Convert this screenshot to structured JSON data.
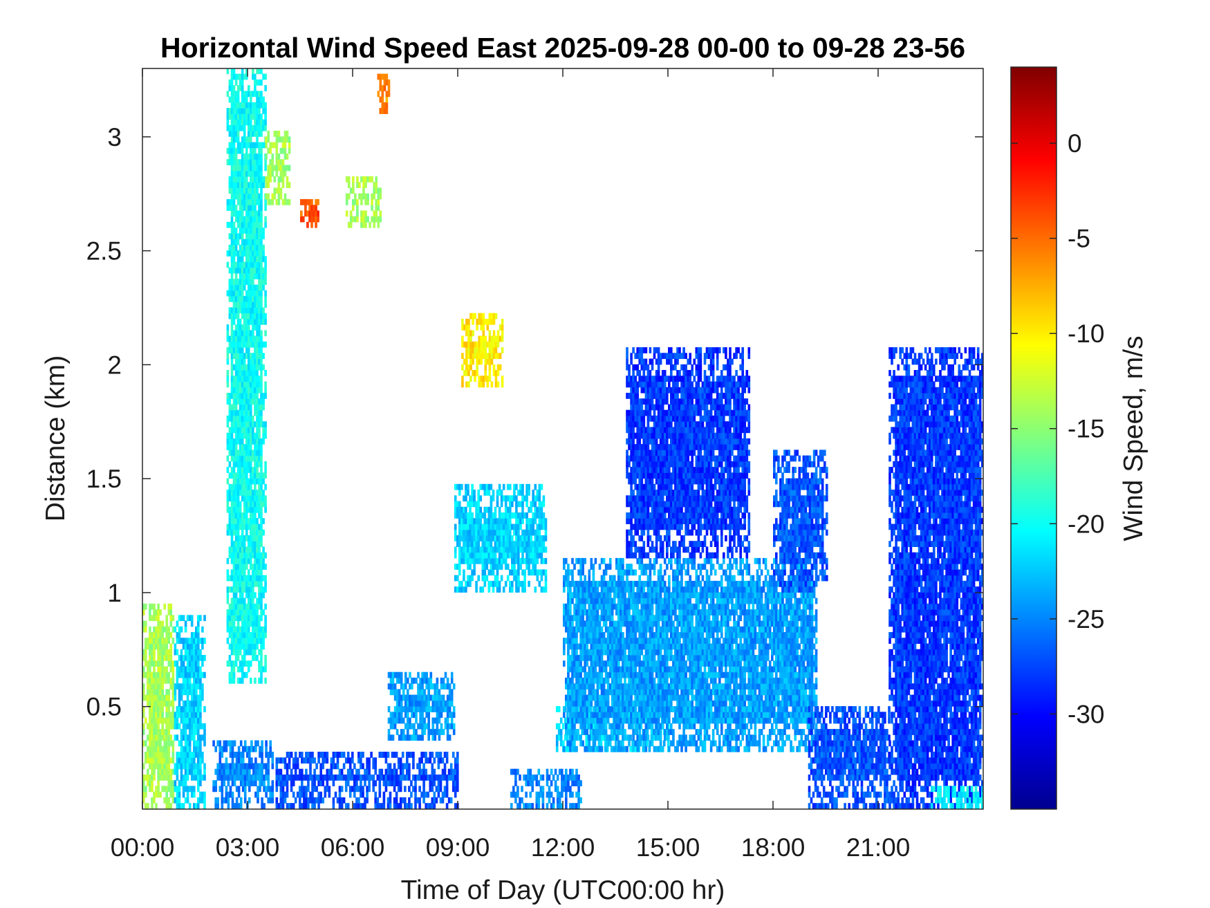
{
  "chart_data": {
    "type": "heatmap",
    "title": "Horizontal Wind Speed East 2025-09-28 00-00 to 09-28 23-56",
    "xlabel": "Time of Day (UTC00:00 hr)",
    "ylabel": "Distance (km)",
    "x_unit": "hour",
    "xlim": [
      0,
      24
    ],
    "ylim": [
      0.05,
      3.3
    ],
    "x_ticks": [
      0,
      3,
      6,
      9,
      12,
      15,
      18,
      21
    ],
    "x_tick_labels": [
      "00:00",
      "03:00",
      "06:00",
      "09:00",
      "12:00",
      "15:00",
      "18:00",
      "21:00"
    ],
    "y_ticks": [
      0.5,
      1,
      1.5,
      2,
      2.5,
      3
    ],
    "y_tick_labels": [
      "0.5",
      "1",
      "1.5",
      "2",
      "2.5",
      "3"
    ],
    "colorbar": {
      "label": "Wind Speed, m/s",
      "colormap": "jet",
      "range": [
        -35,
        4
      ],
      "ticks": [
        0,
        -5,
        -10,
        -15,
        -20,
        -25,
        -30
      ],
      "tick_labels": [
        "0",
        "-5",
        "-10",
        "-15",
        "-20",
        "-25",
        "-30"
      ]
    },
    "grid": false,
    "regions": [
      {
        "x": [
          0.0,
          0.9
        ],
        "ylim": [
          0.05,
          0.95
        ],
        "value": -14
      },
      {
        "x": [
          0.9,
          1.8
        ],
        "ylim": [
          0.05,
          0.9
        ],
        "value": -22
      },
      {
        "x": [
          2.0,
          3.7
        ],
        "ylim": [
          0.05,
          0.35
        ],
        "value": -25
      },
      {
        "x": [
          2.4,
          3.5
        ],
        "ylim": [
          0.6,
          3.3
        ],
        "value": -20
      },
      {
        "x": [
          3.5,
          4.2
        ],
        "ylim": [
          2.7,
          3.0
        ],
        "value": -14
      },
      {
        "x": [
          4.5,
          5.0
        ],
        "ylim": [
          2.6,
          2.7
        ],
        "value": -4
      },
      {
        "x": [
          5.8,
          6.8
        ],
        "ylim": [
          2.6,
          2.8
        ],
        "value": -14
      },
      {
        "x": [
          6.7,
          7.0
        ],
        "ylim": [
          3.1,
          3.25
        ],
        "value": -6
      },
      {
        "x": [
          3.8,
          9.0
        ],
        "ylim": [
          0.05,
          0.3
        ],
        "value": -27
      },
      {
        "x": [
          7.0,
          8.9
        ],
        "ylim": [
          0.35,
          0.65
        ],
        "value": -24
      },
      {
        "x": [
          8.9,
          11.5
        ],
        "ylim": [
          1.0,
          1.45
        ],
        "value": -22
      },
      {
        "x": [
          9.1,
          10.3
        ],
        "ylim": [
          1.9,
          2.2
        ],
        "value": -10
      },
      {
        "x": [
          10.5,
          12.5
        ],
        "ylim": [
          0.05,
          0.2
        ],
        "value": -25
      },
      {
        "x": [
          11.8,
          15.0
        ],
        "ylim": [
          0.3,
          0.5
        ],
        "value": -22
      },
      {
        "x": [
          12.0,
          19.2
        ],
        "ylim": [
          0.3,
          1.15
        ],
        "value": -24
      },
      {
        "x": [
          13.8,
          17.3
        ],
        "ylim": [
          1.15,
          2.05
        ],
        "value": -28
      },
      {
        "x": [
          18.0,
          19.5
        ],
        "ylim": [
          1.0,
          1.6
        ],
        "value": -27
      },
      {
        "x": [
          19.0,
          21.3
        ],
        "ylim": [
          0.05,
          0.5
        ],
        "value": -27
      },
      {
        "x": [
          21.3,
          24.0
        ],
        "ylim": [
          0.05,
          2.05
        ],
        "value": -28
      },
      {
        "x": [
          22.5,
          24.0
        ],
        "ylim": [
          0.05,
          0.15
        ],
        "value": -21
      }
    ]
  }
}
